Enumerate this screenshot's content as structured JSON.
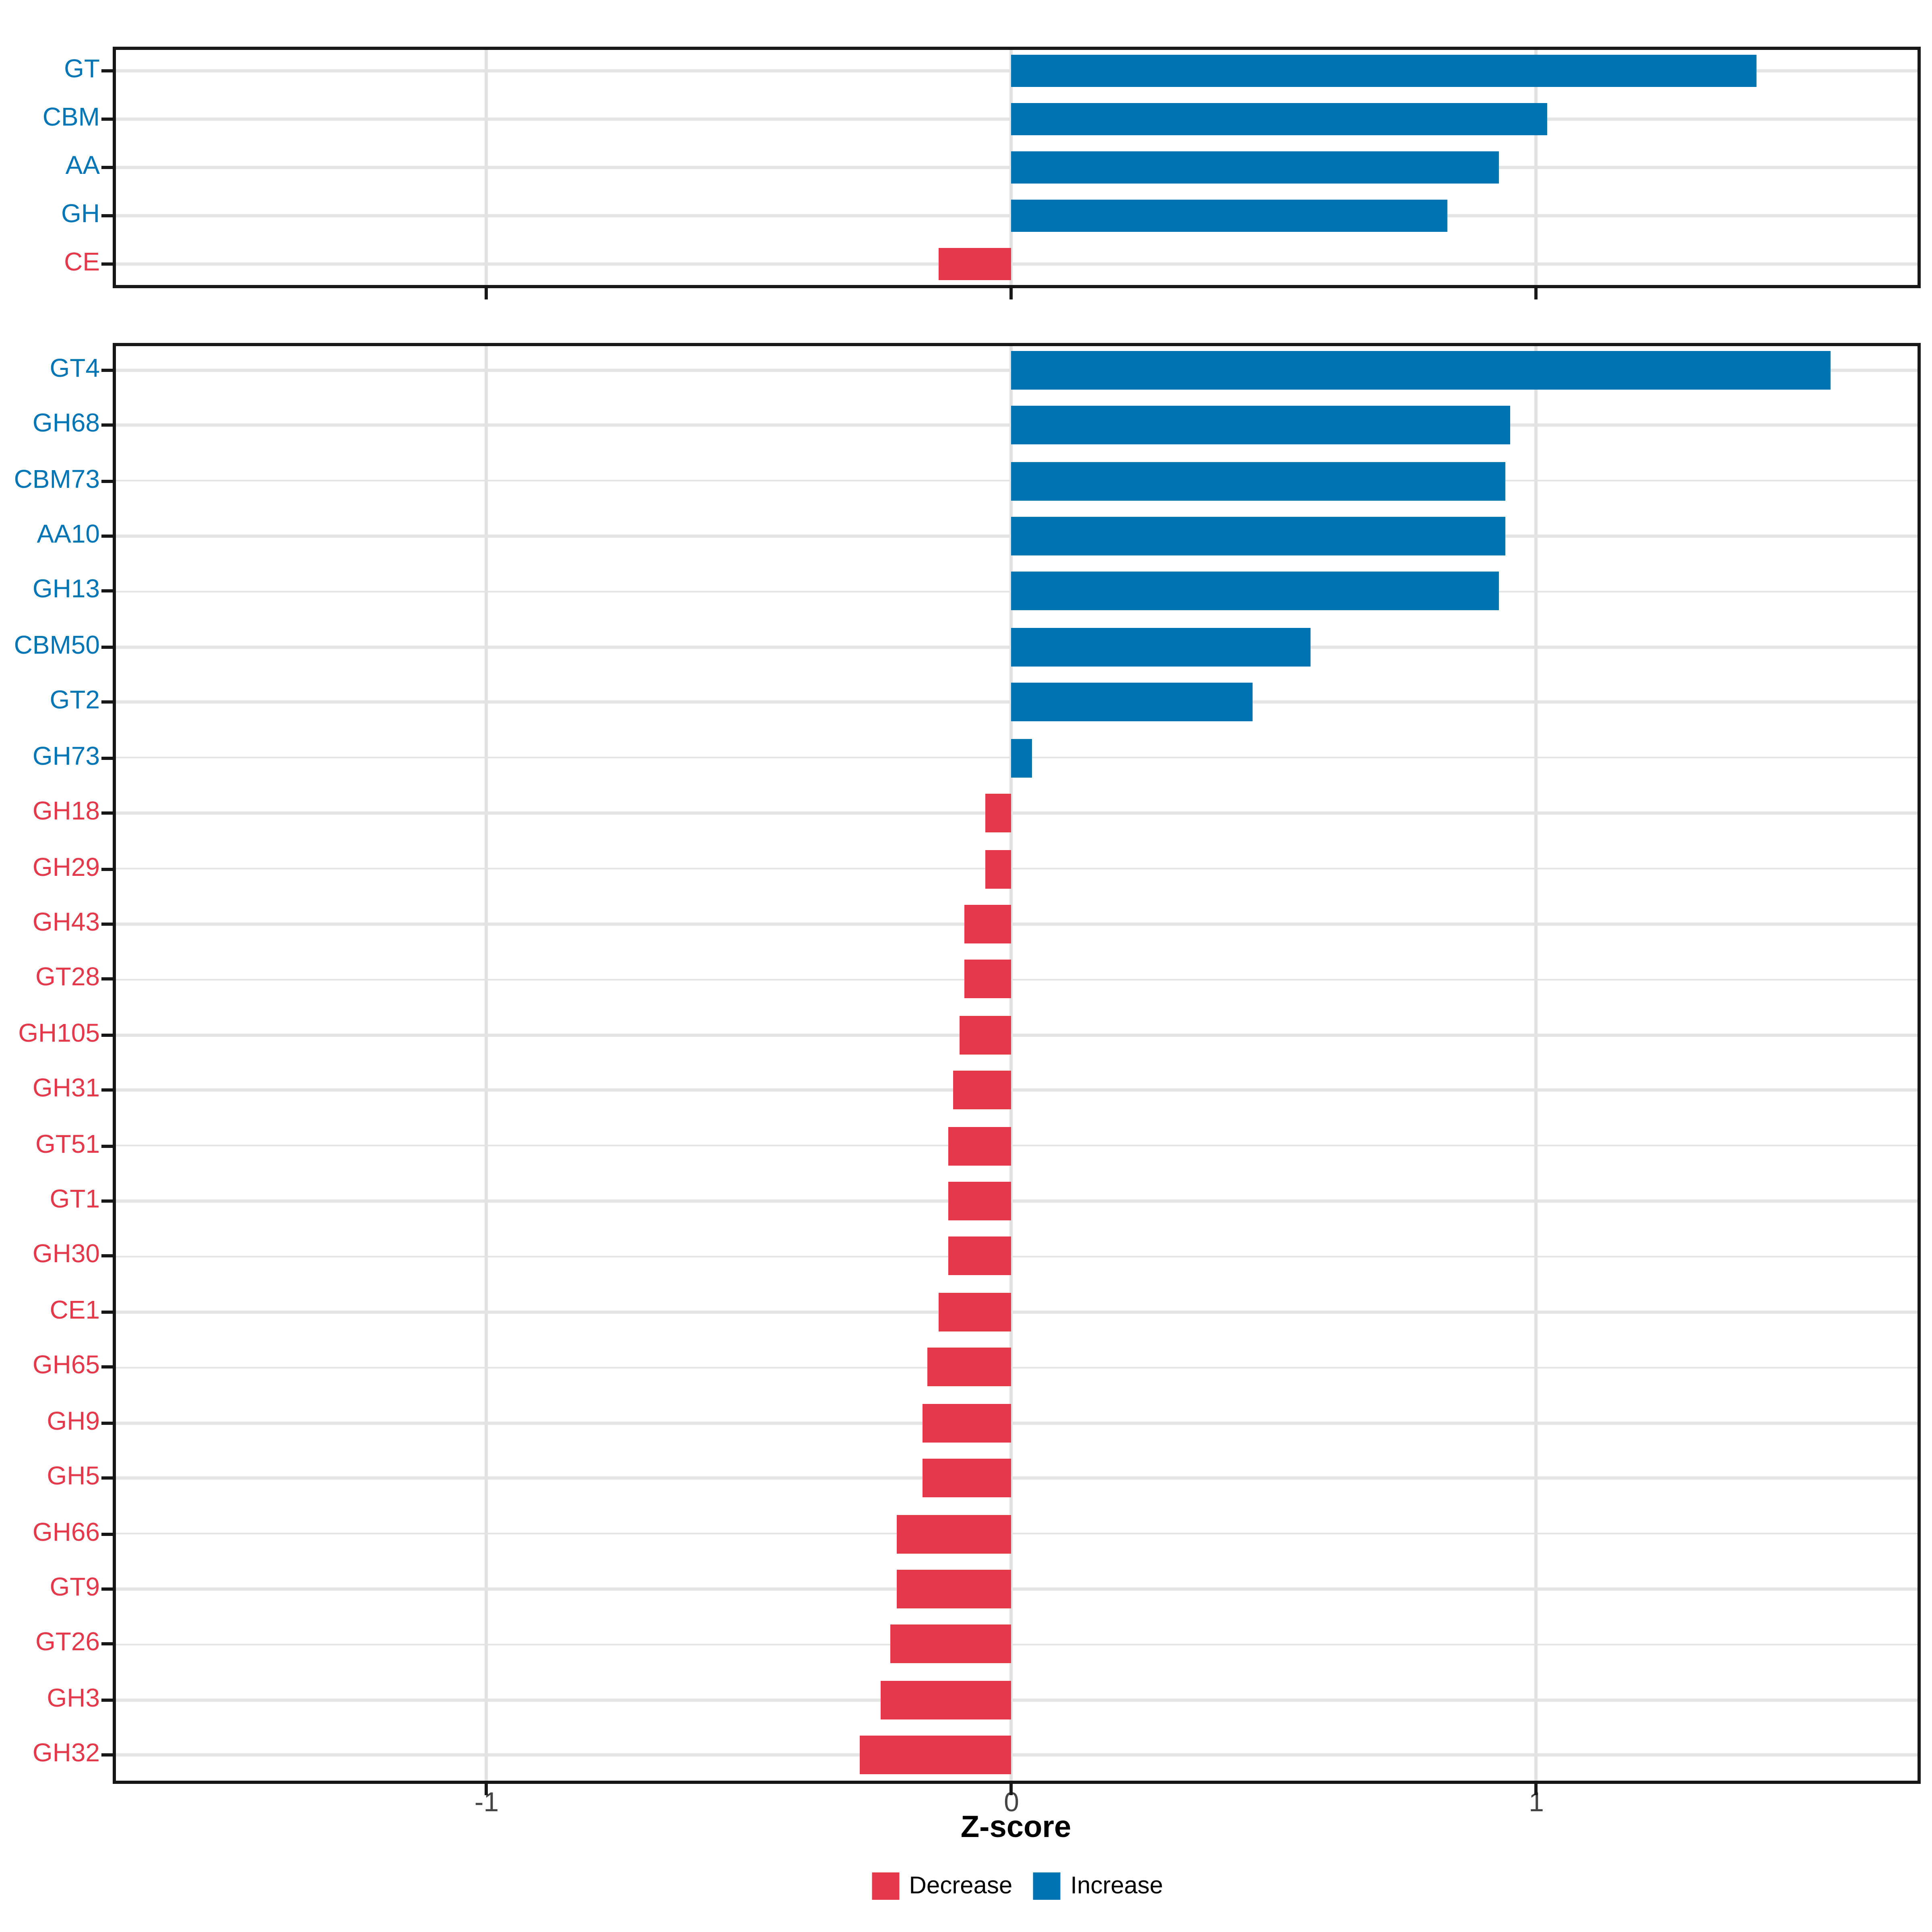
{
  "colors": {
    "increase": "#0075B6",
    "decrease": "#E4394B",
    "grid": "#E2E2E2",
    "panel_border": "#171717",
    "tick_mark": "#171717",
    "tick_label": "#454545",
    "axis_title": "#000000",
    "background": "#FFFFFF"
  },
  "x_axis": {
    "label": "Z-score",
    "ticks": [
      -1,
      0,
      1
    ],
    "tick_labels": [
      "-1",
      "0",
      "1"
    ]
  },
  "legend": {
    "position": "bottom",
    "items": [
      {
        "label": "Decrease",
        "direction": "decrease"
      },
      {
        "label": "Increase",
        "direction": "increase"
      }
    ]
  },
  "chart_data": [
    {
      "type": "bar",
      "orientation": "horizontal",
      "panel": "cazyme-classes",
      "title": "",
      "xlabel": "Z-score",
      "ylabel": "",
      "xlim": [
        -1.71,
        1.73
      ],
      "xticks": [
        -1,
        0,
        1
      ],
      "grid": "major-only",
      "bar_color_rule": "blue if value >= 0 (Increase), red if value < 0 (Decrease); category label colored to match",
      "categories": [
        "GT",
        "CBM",
        "AA",
        "GH",
        "CE"
      ],
      "values": [
        1.42,
        1.02,
        0.93,
        0.83,
        -0.14
      ]
    },
    {
      "type": "bar",
      "orientation": "horizontal",
      "panel": "cazyme-families",
      "title": "",
      "xlabel": "Z-score",
      "ylabel": "",
      "xlim": [
        -1.71,
        1.73
      ],
      "xticks": [
        -1,
        0,
        1
      ],
      "grid": "major-only",
      "bar_color_rule": "blue if value >= 0 (Increase), red if value < 0 (Decrease); category label colored to match",
      "categories": [
        "GT4",
        "GH68",
        "CBM73",
        "AA10",
        "GH13",
        "CBM50",
        "GT2",
        "GH73",
        "GH18",
        "GH29",
        "GH43",
        "GT28",
        "GH105",
        "GH31",
        "GT51",
        "GT1",
        "GH30",
        "CE1",
        "GH65",
        "GH9",
        "GH5",
        "GH66",
        "GT9",
        "GT26",
        "GH3",
        "GH32"
      ],
      "values": [
        1.56,
        0.95,
        0.94,
        0.94,
        0.93,
        0.57,
        0.46,
        0.04,
        -0.05,
        -0.05,
        -0.09,
        -0.09,
        -0.1,
        -0.11,
        -0.12,
        -0.12,
        -0.12,
        -0.14,
        -0.16,
        -0.17,
        -0.17,
        -0.22,
        -0.22,
        -0.23,
        -0.25,
        -0.29
      ]
    }
  ]
}
